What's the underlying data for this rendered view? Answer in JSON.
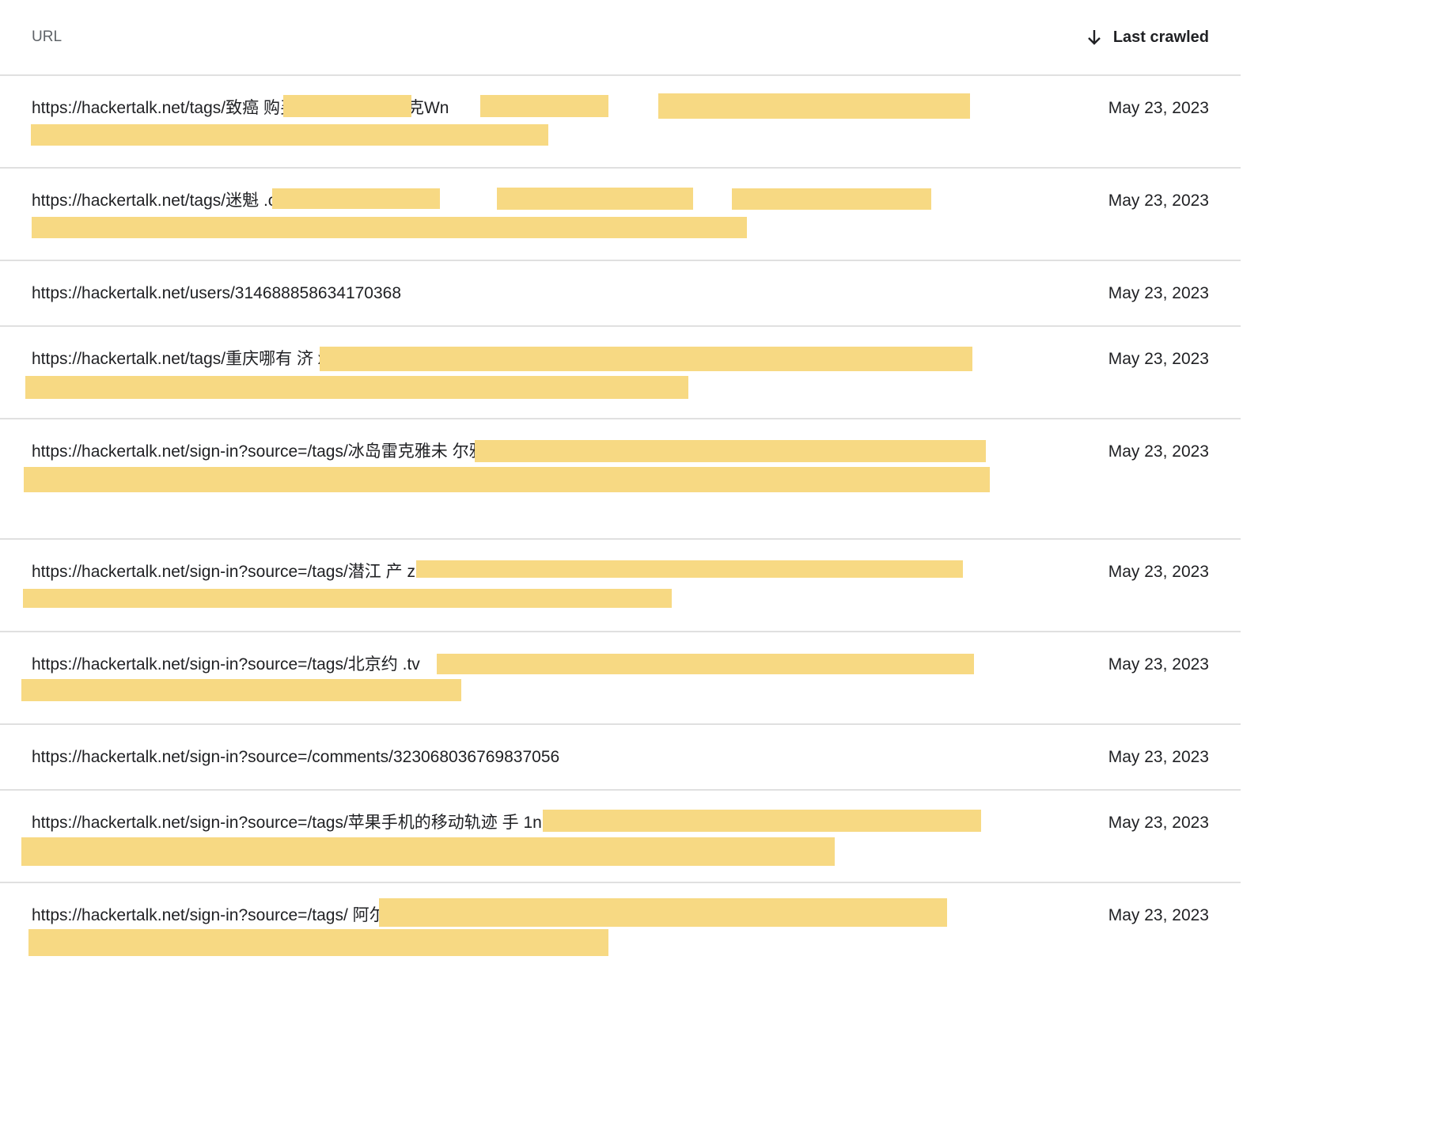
{
  "header": {
    "url_label": "URL",
    "sort_label": "Last crawled",
    "sort_icon": "arrow-down-icon"
  },
  "rows": [
    {
      "url": "https://hackertalk.net/tags/致癌                    购买网址                    行话药,                                                    ,                                                                                               克Wn",
      "date": "May 23, 2023"
    },
    {
      "url": "https://hackertalk.net/tags/迷魁                              .com】                          伟哥                              出售网址                                                                                                               5",
      "date": "May 23, 2023"
    },
    {
      "url": "https://hackertalk.net/users/314688858634170368",
      "date": "May 23, 2023"
    },
    {
      "url": "https://hackertalk.net/tags/重庆哪有                                                                                                      济                                                                                                        xJ",
      "date": "May 23, 2023"
    },
    {
      "url": "https://hackertalk.net/sign-in?source=/tags/冰岛雷克雅未                                                                                                                                                                              尔雅那离婚证qw",
      "date": "May 23, 2023"
    },
    {
      "url": "https://hackertalk.net/sign-in?source=/tags/潜江                                                                                        产                                                                                                        z",
      "date": "May 23, 2023"
    },
    {
      "url": "https://hackertalk.net/sign-in?source=/tags/北京约                                                                                        .tv",
      "date": "May 23, 2023"
    },
    {
      "url": "https://hackertalk.net/sign-in?source=/comments/323068036769837056",
      "date": "May 23, 2023"
    },
    {
      "url": "https://hackertalk.net/sign-in?source=/tags/苹果手机的移动轨迹                                                                        手                                                                                                                                 1n",
      "date": "May 23, 2023"
    },
    {
      "url": "https://hackertalk.net/sign-in?source=/tags/                                                                                              阿尔U                                                                                             红单推荐cN",
      "date": "May 23, 2023"
    }
  ]
}
